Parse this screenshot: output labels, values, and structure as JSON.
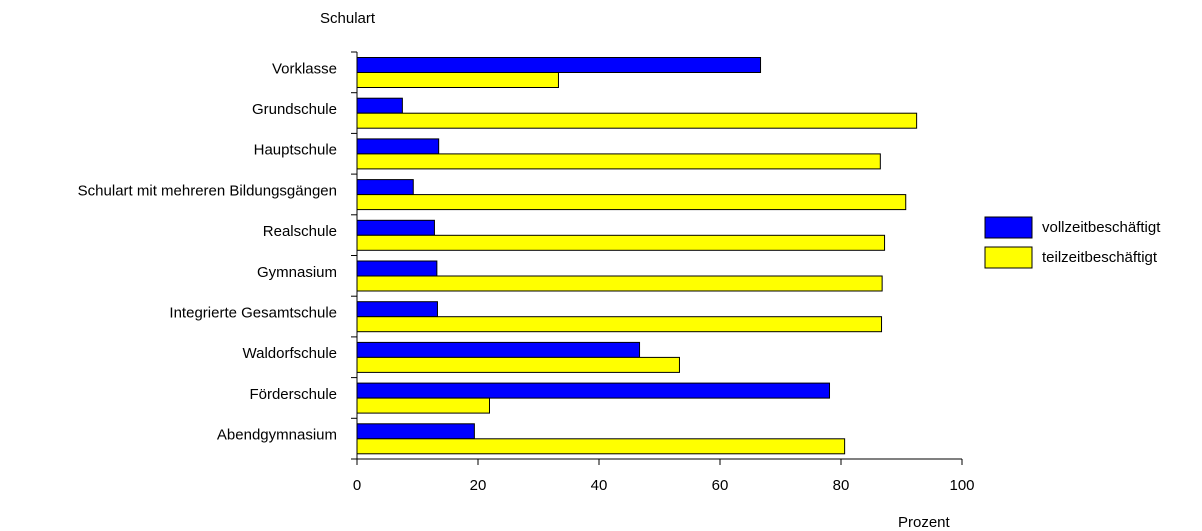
{
  "chart_data": {
    "type": "bar",
    "orientation": "horizontal",
    "ylabel": "Schulart",
    "xlabel": "Prozent",
    "xlim": [
      0,
      100
    ],
    "xticks": [
      0,
      20,
      40,
      60,
      80,
      100
    ],
    "grid": false,
    "legend_position": "right",
    "categories": [
      "Vorklasse",
      "Grundschule",
      "Hauptschule",
      "Schulart mit mehreren Bildungsgängen",
      "Realschule",
      "Gymnasium",
      "Integrierte Gesamtschule",
      "Waldorfschule",
      "Förderschule",
      "Abendgymnasium"
    ],
    "series": [
      {
        "name": "vollzeitbeschäftigt",
        "color": "#0000ff",
        "values": [
          66.7,
          7.5,
          13.5,
          9.3,
          12.8,
          13.2,
          13.3,
          46.7,
          78.1,
          19.4
        ]
      },
      {
        "name": "teilzeitbeschäftigt",
        "color": "#ffff00",
        "values": [
          33.3,
          92.5,
          86.5,
          90.7,
          87.2,
          86.8,
          86.7,
          53.3,
          21.9,
          80.6
        ]
      }
    ]
  }
}
